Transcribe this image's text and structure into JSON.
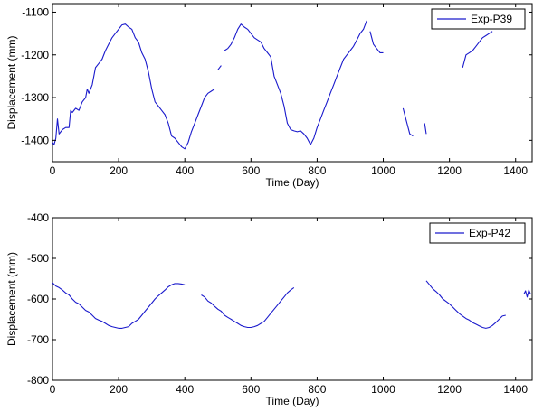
{
  "chart_data": [
    {
      "type": "line",
      "xlabel": "Time (Day)",
      "ylabel": "Displacement (mm)",
      "xlim": [
        0,
        1450
      ],
      "ylim": [
        -1450,
        -1080
      ],
      "xticks": [
        0,
        200,
        400,
        600,
        800,
        1000,
        1200,
        1400
      ],
      "yticks": [
        -1100,
        -1200,
        -1300,
        -1400
      ],
      "grid": false,
      "legend_position": "top-right",
      "series": [
        {
          "name": "Exp-P39",
          "color": "#1a1acc",
          "segments": [
            [
              [
                0,
                -1405
              ],
              [
                5,
                -1410
              ],
              [
                10,
                -1395
              ],
              [
                15,
                -1350
              ],
              [
                20,
                -1385
              ],
              [
                30,
                -1375
              ],
              [
                40,
                -1370
              ],
              [
                50,
                -1370
              ],
              [
                55,
                -1330
              ],
              [
                60,
                -1335
              ],
              [
                70,
                -1325
              ],
              [
                80,
                -1330
              ],
              [
                90,
                -1310
              ],
              [
                100,
                -1300
              ],
              [
                105,
                -1280
              ],
              [
                110,
                -1290
              ],
              [
                120,
                -1270
              ],
              [
                130,
                -1230
              ],
              [
                140,
                -1220
              ],
              [
                150,
                -1210
              ],
              [
                160,
                -1190
              ],
              [
                170,
                -1175
              ],
              [
                180,
                -1160
              ],
              [
                190,
                -1150
              ],
              [
                200,
                -1140
              ],
              [
                210,
                -1130
              ],
              [
                220,
                -1128
              ],
              [
                230,
                -1135
              ],
              [
                240,
                -1140
              ],
              [
                250,
                -1160
              ],
              [
                260,
                -1170
              ],
              [
                270,
                -1195
              ],
              [
                280,
                -1210
              ],
              [
                290,
                -1240
              ],
              [
                300,
                -1280
              ],
              [
                310,
                -1310
              ],
              [
                320,
                -1320
              ],
              [
                330,
                -1330
              ],
              [
                340,
                -1340
              ],
              [
                350,
                -1360
              ],
              [
                360,
                -1390
              ],
              [
                370,
                -1395
              ],
              [
                380,
                -1405
              ],
              [
                390,
                -1415
              ],
              [
                400,
                -1420
              ],
              [
                410,
                -1405
              ],
              [
                420,
                -1380
              ],
              [
                430,
                -1360
              ],
              [
                440,
                -1340
              ],
              [
                450,
                -1320
              ],
              [
                460,
                -1300
              ],
              [
                470,
                -1290
              ],
              [
                480,
                -1285
              ],
              [
                490,
                -1280
              ]
            ],
            [
              [
                500,
                -1235
              ],
              [
                510,
                -1225
              ]
            ],
            [
              [
                520,
                -1190
              ],
              [
                530,
                -1185
              ],
              [
                540,
                -1175
              ],
              [
                550,
                -1160
              ],
              [
                560,
                -1140
              ],
              [
                570,
                -1128
              ],
              [
                580,
                -1135
              ],
              [
                590,
                -1140
              ],
              [
                600,
                -1150
              ],
              [
                610,
                -1160
              ],
              [
                620,
                -1165
              ],
              [
                630,
                -1170
              ],
              [
                640,
                -1185
              ],
              [
                650,
                -1195
              ],
              [
                660,
                -1205
              ],
              [
                670,
                -1250
              ],
              [
                680,
                -1270
              ],
              [
                690,
                -1290
              ],
              [
                700,
                -1320
              ],
              [
                710,
                -1360
              ],
              [
                720,
                -1375
              ],
              [
                730,
                -1378
              ],
              [
                740,
                -1380
              ],
              [
                750,
                -1378
              ],
              [
                760,
                -1385
              ],
              [
                770,
                -1395
              ],
              [
                780,
                -1410
              ],
              [
                790,
                -1395
              ],
              [
                800,
                -1370
              ],
              [
                810,
                -1350
              ],
              [
                820,
                -1330
              ],
              [
                830,
                -1310
              ],
              [
                840,
                -1290
              ],
              [
                850,
                -1270
              ],
              [
                860,
                -1250
              ],
              [
                870,
                -1230
              ],
              [
                880,
                -1210
              ],
              [
                890,
                -1200
              ],
              [
                900,
                -1190
              ],
              [
                910,
                -1180
              ],
              [
                920,
                -1165
              ],
              [
                930,
                -1150
              ],
              [
                940,
                -1140
              ],
              [
                950,
                -1120
              ]
            ],
            [
              [
                960,
                -1145
              ],
              [
                970,
                -1175
              ],
              [
                980,
                -1185
              ],
              [
                990,
                -1195
              ],
              [
                1000,
                -1195
              ]
            ],
            [
              [
                1060,
                -1325
              ],
              [
                1070,
                -1355
              ],
              [
                1080,
                -1385
              ],
              [
                1090,
                -1390
              ]
            ],
            [
              [
                1125,
                -1360
              ],
              [
                1130,
                -1385
              ]
            ],
            [
              [
                1240,
                -1230
              ],
              [
                1250,
                -1200
              ],
              [
                1260,
                -1195
              ],
              [
                1270,
                -1190
              ],
              [
                1280,
                -1180
              ],
              [
                1290,
                -1170
              ],
              [
                1300,
                -1160
              ],
              [
                1310,
                -1155
              ],
              [
                1320,
                -1150
              ],
              [
                1330,
                -1145
              ]
            ]
          ]
        }
      ]
    },
    {
      "type": "line",
      "xlabel": "Time (Day)",
      "ylabel": "Displacement (mm)",
      "xlim": [
        0,
        1450
      ],
      "ylim": [
        -800,
        -400
      ],
      "xticks": [
        0,
        200,
        400,
        600,
        800,
        1000,
        1200,
        1400
      ],
      "yticks": [
        -400,
        -500,
        -600,
        -700,
        -800
      ],
      "grid": false,
      "legend_position": "top-right",
      "series": [
        {
          "name": "Exp-P42",
          "color": "#1a1acc",
          "segments": [
            [
              [
                0,
                -560
              ],
              [
                10,
                -568
              ],
              [
                20,
                -572
              ],
              [
                30,
                -578
              ],
              [
                40,
                -585
              ],
              [
                50,
                -590
              ],
              [
                60,
                -600
              ],
              [
                70,
                -608
              ],
              [
                80,
                -612
              ],
              [
                90,
                -620
              ],
              [
                100,
                -628
              ],
              [
                110,
                -632
              ],
              [
                120,
                -640
              ],
              [
                130,
                -648
              ],
              [
                140,
                -652
              ],
              [
                150,
                -655
              ],
              [
                160,
                -660
              ],
              [
                170,
                -665
              ],
              [
                180,
                -668
              ],
              [
                190,
                -670
              ],
              [
                200,
                -672
              ],
              [
                210,
                -672
              ],
              [
                220,
                -670
              ],
              [
                230,
                -668
              ],
              [
                240,
                -660
              ],
              [
                250,
                -655
              ],
              [
                260,
                -650
              ],
              [
                270,
                -640
              ],
              [
                280,
                -630
              ],
              [
                290,
                -620
              ],
              [
                300,
                -610
              ],
              [
                310,
                -600
              ],
              [
                320,
                -592
              ],
              [
                330,
                -585
              ],
              [
                340,
                -578
              ],
              [
                350,
                -570
              ],
              [
                360,
                -565
              ],
              [
                370,
                -562
              ],
              [
                380,
                -562
              ],
              [
                390,
                -563
              ],
              [
                400,
                -565
              ]
            ],
            [
              [
                450,
                -590
              ],
              [
                460,
                -595
              ],
              [
                470,
                -605
              ],
              [
                480,
                -610
              ],
              [
                490,
                -618
              ],
              [
                500,
                -625
              ],
              [
                510,
                -630
              ],
              [
                520,
                -640
              ],
              [
                530,
                -645
              ],
              [
                540,
                -650
              ],
              [
                550,
                -655
              ],
              [
                560,
                -660
              ],
              [
                570,
                -665
              ],
              [
                580,
                -668
              ],
              [
                590,
                -670
              ],
              [
                600,
                -670
              ],
              [
                610,
                -668
              ],
              [
                620,
                -665
              ],
              [
                630,
                -660
              ],
              [
                640,
                -655
              ],
              [
                650,
                -645
              ],
              [
                660,
                -635
              ],
              [
                670,
                -625
              ],
              [
                680,
                -615
              ],
              [
                690,
                -605
              ],
              [
                700,
                -595
              ],
              [
                710,
                -585
              ],
              [
                720,
                -578
              ],
              [
                730,
                -572
              ]
            ],
            [
              [
                1130,
                -555
              ],
              [
                1140,
                -565
              ],
              [
                1150,
                -575
              ],
              [
                1160,
                -582
              ],
              [
                1170,
                -590
              ],
              [
                1180,
                -600
              ],
              [
                1190,
                -606
              ],
              [
                1200,
                -612
              ],
              [
                1210,
                -620
              ],
              [
                1220,
                -628
              ],
              [
                1230,
                -636
              ],
              [
                1240,
                -642
              ],
              [
                1250,
                -648
              ],
              [
                1260,
                -652
              ],
              [
                1270,
                -658
              ],
              [
                1280,
                -662
              ],
              [
                1290,
                -666
              ],
              [
                1300,
                -670
              ],
              [
                1310,
                -672
              ],
              [
                1320,
                -670
              ],
              [
                1330,
                -665
              ],
              [
                1340,
                -658
              ],
              [
                1350,
                -650
              ],
              [
                1360,
                -642
              ],
              [
                1370,
                -640
              ]
            ],
            [
              [
                1425,
                -588
              ],
              [
                1430,
                -580
              ],
              [
                1435,
                -595
              ],
              [
                1440,
                -578
              ],
              [
                1445,
                -588
              ]
            ]
          ]
        }
      ]
    }
  ]
}
